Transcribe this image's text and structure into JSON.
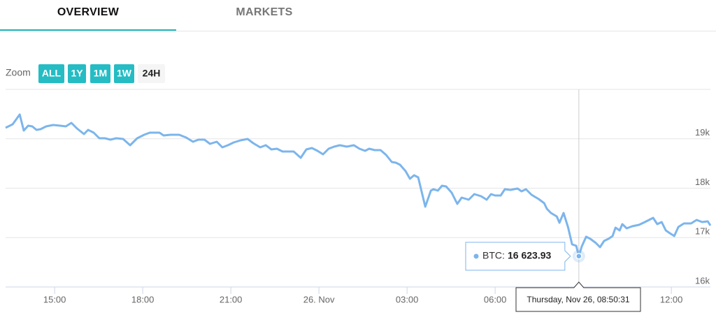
{
  "tabs": [
    "OVERVIEW",
    "MARKETS"
  ],
  "zoom": {
    "label": "Zoom",
    "buttons": [
      "ALL",
      "1Y",
      "1M",
      "1W",
      "24H"
    ]
  },
  "chart_data": {
    "type": "line",
    "color": "#7cb5ec",
    "grid": true,
    "x": [
      13.33,
      13.57,
      13.81,
      13.95,
      14.1,
      14.24,
      14.38,
      14.52,
      14.71,
      14.95,
      15.19,
      15.38,
      15.57,
      15.76,
      16.0,
      16.14,
      16.33,
      16.52,
      16.71,
      16.9,
      17.1,
      17.33,
      17.57,
      17.81,
      18.05,
      18.24,
      18.57,
      18.71,
      18.95,
      19.24,
      19.48,
      19.71,
      19.9,
      20.1,
      20.29,
      20.52,
      20.71,
      20.9,
      21.1,
      21.33,
      21.57,
      21.76,
      22.0,
      22.19,
      22.38,
      22.57,
      22.76,
      22.95,
      23.14,
      23.38,
      23.57,
      23.76,
      23.95,
      24.14,
      24.33,
      24.52,
      24.71,
      24.95,
      25.19,
      25.38,
      25.57,
      25.71,
      25.9,
      26.1,
      26.29,
      26.48,
      26.62,
      26.76,
      26.95,
      27.1,
      27.24,
      27.38,
      27.62,
      27.81,
      27.9,
      28.05,
      28.19,
      28.33,
      28.52,
      28.71,
      28.86,
      29.1,
      29.29,
      29.52,
      29.71,
      29.86,
      30.0,
      30.19,
      30.33,
      30.52,
      30.76,
      30.9,
      31.05,
      31.24,
      31.48,
      31.67,
      31.76,
      31.9,
      32.1,
      32.19,
      32.33,
      32.48,
      32.62,
      32.76,
      32.85,
      32.95,
      33.1,
      33.24,
      33.43,
      33.57,
      33.71,
      33.86,
      34.0,
      34.1,
      34.24,
      34.33,
      34.48,
      34.67,
      34.9,
      35.1,
      35.24,
      35.38,
      35.52,
      35.67,
      35.81,
      35.95,
      36.1,
      36.24,
      36.43,
      36.67,
      36.86,
      37.05,
      37.24,
      37.33
    ],
    "values": [
      19223,
      19293,
      19491,
      19166,
      19265,
      19251,
      19180,
      19194,
      19251,
      19279,
      19265,
      19251,
      19321,
      19208,
      19095,
      19180,
      19124,
      19011,
      19011,
      18982,
      19011,
      18996,
      18869,
      19011,
      19081,
      19124,
      19124,
      19067,
      19081,
      19081,
      19025,
      18940,
      18982,
      18982,
      18897,
      18940,
      18827,
      18869,
      18926,
      18968,
      18996,
      18912,
      18827,
      18869,
      18784,
      18799,
      18742,
      18742,
      18742,
      18615,
      18784,
      18813,
      18756,
      18685,
      18799,
      18841,
      18869,
      18841,
      18869,
      18799,
      18756,
      18799,
      18771,
      18771,
      18671,
      18530,
      18516,
      18473,
      18346,
      18191,
      18261,
      18219,
      17625,
      17950,
      17979,
      17950,
      18049,
      18035,
      17908,
      17682,
      17809,
      17767,
      17880,
      17837,
      17767,
      17880,
      17852,
      17852,
      17979,
      17965,
      17993,
      17936,
      17979,
      17866,
      17781,
      17696,
      17583,
      17498,
      17428,
      17300,
      17498,
      17216,
      16862,
      16834,
      16623.93,
      16820,
      17018,
      16975,
      16890,
      16806,
      16933,
      16975,
      17032,
      17201,
      17145,
      17272,
      17187,
      17230,
      17258,
      17314,
      17357,
      17399,
      17272,
      17314,
      17145,
      17088,
      17032,
      17216,
      17286,
      17286,
      17357,
      17314,
      17329,
      17244
    ],
    "xlim": [
      13.33,
      37.33
    ],
    "xticks": [
      {
        "value": 15,
        "label": "15:00"
      },
      {
        "value": 18,
        "label": "18:00"
      },
      {
        "value": 21,
        "label": "21:00"
      },
      {
        "value": 24,
        "label": "26. Nov"
      },
      {
        "value": 27,
        "label": "03:00"
      },
      {
        "value": 30,
        "label": "06:00"
      },
      {
        "value": 36,
        "label": "12:00"
      }
    ],
    "ylim": [
      16000,
      20000
    ],
    "yticks": [
      {
        "value": 16000,
        "label": "16k"
      },
      {
        "value": 17000,
        "label": "17k"
      },
      {
        "value": 18000,
        "label": "18k"
      },
      {
        "value": 19000,
        "label": "19k"
      }
    ],
    "tooltip": {
      "label": "BTC:",
      "value": 16623.93,
      "value_label": "16 623.93",
      "date": "Thursday, Nov 26, 08:50:31"
    }
  }
}
